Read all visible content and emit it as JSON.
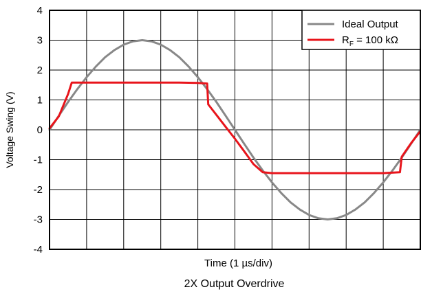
{
  "chart_data": {
    "type": "line",
    "title": "2X Output Overdrive",
    "xlabel": "Time (1 µs/div)",
    "ylabel": "Voltage Swing (V)",
    "xlim": [
      0,
      10
    ],
    "ylim": [
      -4,
      4
    ],
    "yticks": [
      "4",
      "3",
      "2",
      "1",
      "0",
      "-1",
      "-2",
      "-3",
      "-4"
    ],
    "x_divisions": 10,
    "grid": true,
    "legend_position": "top-right",
    "series": [
      {
        "name": "Ideal Output",
        "color": "#888888",
        "x": [
          0,
          0.25,
          0.5,
          0.75,
          1,
          1.25,
          1.5,
          1.75,
          2,
          2.25,
          2.5,
          2.75,
          3,
          3.25,
          3.5,
          3.75,
          4,
          4.25,
          4.5,
          4.75,
          5,
          5.25,
          5.5,
          5.75,
          6,
          6.25,
          6.5,
          6.75,
          7,
          7.25,
          7.5,
          7.75,
          8,
          8.25,
          8.5,
          8.75,
          9,
          9.25,
          9.5,
          9.75,
          10
        ],
        "y": [
          0,
          0.47,
          0.93,
          1.36,
          1.76,
          2.12,
          2.43,
          2.67,
          2.85,
          2.96,
          3.0,
          2.96,
          2.85,
          2.67,
          2.43,
          2.12,
          1.76,
          1.36,
          0.93,
          0.47,
          0,
          -0.47,
          -0.93,
          -1.36,
          -1.76,
          -2.12,
          -2.43,
          -2.67,
          -2.85,
          -2.96,
          -3.0,
          -2.96,
          -2.85,
          -2.67,
          -2.43,
          -2.12,
          -1.76,
          -1.36,
          -0.93,
          -0.47,
          0
        ]
      },
      {
        "name_prefix": "R",
        "name_subscript": "F",
        "name_suffix": " = 100 kΩ",
        "color": "#e8141b",
        "x": [
          0,
          0.25,
          0.5,
          0.6,
          1.5,
          2.5,
          3.5,
          4.0,
          4.25,
          4.28,
          4.5,
          4.75,
          5.0,
          5.25,
          5.5,
          5.75,
          6.0,
          7.0,
          8.0,
          9.0,
          9.45,
          9.5,
          9.75,
          10
        ],
        "y": [
          0.05,
          0.45,
          1.2,
          1.58,
          1.58,
          1.58,
          1.58,
          1.57,
          1.55,
          0.85,
          0.5,
          0.1,
          -0.3,
          -0.72,
          -1.15,
          -1.42,
          -1.45,
          -1.45,
          -1.45,
          -1.45,
          -1.42,
          -0.9,
          -0.45,
          -0.05
        ]
      }
    ]
  }
}
